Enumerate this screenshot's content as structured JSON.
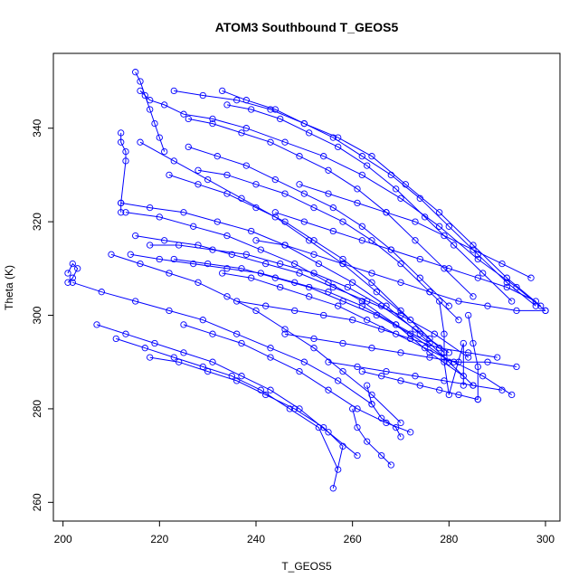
{
  "chart_data": {
    "type": "line",
    "title": "ATOM3 Southbound T_GEOS5",
    "xlabel": "T_GEOS5",
    "ylabel": "Theta (K)",
    "xlim": [
      198,
      303
    ],
    "ylim": [
      256,
      356
    ],
    "xticks": [
      200,
      220,
      240,
      260,
      280,
      300
    ],
    "yticks": [
      260,
      280,
      300,
      320,
      340
    ],
    "series_color": "#0000ff",
    "marker": "open-circle",
    "grid": false,
    "series": [
      {
        "x": [
          216,
          218,
          221,
          225,
          231,
          238,
          246,
          254,
          262,
          270,
          278,
          286,
          294,
          300
        ],
        "y": [
          348,
          346,
          345,
          343,
          342,
          340,
          337,
          334,
          330,
          325,
          319,
          312,
          306,
          301
        ]
      },
      {
        "x": [
          223,
          229,
          236,
          243,
          250,
          257,
          264,
          271,
          278,
          285,
          292,
          299
        ],
        "y": [
          348,
          347,
          346,
          344,
          341,
          338,
          334,
          328,
          322,
          315,
          308,
          302
        ]
      },
      {
        "x": [
          233,
          238,
          244,
          250,
          256,
          262,
          268,
          274,
          280,
          286,
          292,
          298
        ],
        "y": [
          348,
          346,
          344,
          341,
          338,
          334,
          330,
          325,
          319,
          313,
          307,
          302
        ]
      },
      {
        "x": [
          234,
          239,
          245,
          251,
          257,
          263,
          269,
          275,
          281,
          287,
          293
        ],
        "y": [
          345,
          344,
          342,
          339,
          336,
          332,
          327,
          321,
          315,
          309,
          303
        ]
      },
      {
        "x": [
          226,
          231,
          237,
          243,
          249,
          255,
          261,
          267,
          273,
          279,
          285
        ],
        "y": [
          342,
          341,
          339,
          337,
          334,
          331,
          327,
          322,
          316,
          310,
          304
        ]
      },
      {
        "x": [
          215,
          216,
          217,
          218,
          219,
          220,
          221
        ],
        "y": [
          352,
          350,
          347,
          344,
          341,
          338,
          335
        ]
      },
      {
        "x": [
          212,
          212,
          213,
          213,
          212,
          212
        ],
        "y": [
          339,
          337,
          335,
          333,
          324,
          322
        ]
      },
      {
        "x": [
          212,
          218,
          225,
          232,
          239,
          246,
          253,
          260,
          267,
          274,
          280
        ],
        "y": [
          324,
          323,
          322,
          320,
          318,
          315,
          311,
          307,
          302,
          296,
          290
        ]
      },
      {
        "x": [
          213,
          220,
          227,
          234,
          241,
          248,
          255,
          262,
          269,
          276,
          283
        ],
        "y": [
          322,
          321,
          319,
          317,
          314,
          311,
          307,
          303,
          298,
          292,
          287
        ]
      },
      {
        "x": [
          216,
          223,
          230,
          237,
          244,
          251,
          258,
          265,
          272,
          279
        ],
        "y": [
          337,
          333,
          329,
          325,
          321,
          316,
          311,
          305,
          299,
          292
        ]
      },
      {
        "x": [
          222,
          228,
          234,
          240,
          246,
          252,
          258,
          264,
          270,
          276
        ],
        "y": [
          330,
          328,
          326,
          323,
          320,
          316,
          312,
          307,
          301,
          295
        ]
      },
      {
        "x": [
          226,
          232,
          238,
          244,
          250,
          256,
          262,
          268,
          274,
          280
        ],
        "y": [
          336,
          334,
          332,
          329,
          326,
          323,
          319,
          314,
          308,
          302
        ]
      },
      {
        "x": [
          228,
          234,
          240,
          246,
          252,
          258,
          264,
          270,
          276,
          282
        ],
        "y": [
          331,
          330,
          328,
          326,
          323,
          320,
          316,
          311,
          305,
          299
        ]
      },
      {
        "x": [
          215,
          221,
          228,
          235,
          242,
          249,
          256,
          263,
          270,
          277,
          284
        ],
        "y": [
          317,
          316,
          315,
          313,
          311,
          309,
          306,
          303,
          300,
          296,
          291
        ]
      },
      {
        "x": [
          214,
          220,
          227,
          234,
          241,
          248,
          255,
          262,
          269,
          276
        ],
        "y": [
          313,
          312,
          311,
          310,
          309,
          307,
          305,
          302,
          298,
          294
        ]
      },
      {
        "x": [
          218,
          224,
          231,
          238,
          245,
          252,
          259,
          266,
          273,
          280
        ],
        "y": [
          315,
          315,
          314,
          313,
          311,
          309,
          306,
          302,
          297,
          292
        ]
      },
      {
        "x": [
          223,
          230,
          237,
          244,
          251,
          258,
          265,
          272,
          279,
          285
        ],
        "y": [
          312,
          311,
          310,
          308,
          306,
          303,
          300,
          296,
          291,
          285
        ]
      },
      {
        "x": [
          201,
          202,
          203,
          202,
          201
        ],
        "y": [
          309,
          311,
          310,
          308,
          307
        ]
      },
      {
        "x": [
          202,
          208,
          215,
          222,
          229,
          236,
          243,
          250,
          257,
          264
        ],
        "y": [
          307,
          305,
          303,
          301,
          299,
          296,
          293,
          290,
          286,
          281
        ]
      },
      {
        "x": [
          210,
          216,
          222,
          228,
          234,
          240,
          246,
          252,
          258,
          264,
          270
        ],
        "y": [
          313,
          311,
          309,
          307,
          304,
          301,
          297,
          293,
          288,
          283,
          277
        ]
      },
      {
        "x": [
          207,
          213,
          219,
          225,
          231,
          237,
          243,
          249,
          255,
          261
        ],
        "y": [
          298,
          296,
          294,
          292,
          290,
          287,
          284,
          280,
          275,
          270
        ]
      },
      {
        "x": [
          211,
          217,
          223,
          229,
          235,
          241,
          247,
          253,
          257
        ],
        "y": [
          295,
          293,
          291,
          289,
          287,
          284,
          280,
          276,
          267
        ]
      },
      {
        "x": [
          218,
          224,
          230,
          236,
          242,
          248,
          254,
          258,
          256
        ],
        "y": [
          291,
          290,
          288,
          286,
          283,
          280,
          276,
          272,
          263
        ]
      },
      {
        "x": [
          225,
          231,
          237,
          243,
          249,
          255,
          261,
          267,
          272
        ],
        "y": [
          298,
          296,
          294,
          291,
          288,
          284,
          280,
          277,
          275
        ]
      },
      {
        "x": [
          233,
          239,
          245,
          251,
          257,
          263,
          269,
          275,
          281,
          287,
          293
        ],
        "y": [
          309,
          308,
          306,
          304,
          302,
          299,
          296,
          293,
          290,
          287,
          283
        ]
      },
      {
        "x": [
          240,
          246,
          252,
          258,
          264,
          270,
          276,
          282,
          288,
          294,
          300
        ],
        "y": [
          316,
          315,
          313,
          311,
          309,
          307,
          305,
          303,
          302,
          301,
          301
        ]
      },
      {
        "x": [
          244,
          250,
          256,
          262,
          268,
          274,
          280,
          286,
          292,
          298
        ],
        "y": [
          322,
          320,
          318,
          316,
          314,
          312,
          310,
          308,
          306,
          303
        ]
      },
      {
        "x": [
          249,
          255,
          261,
          267,
          273,
          279,
          285,
          291,
          297
        ],
        "y": [
          328,
          326,
          324,
          322,
          320,
          317,
          314,
          311,
          308
        ]
      },
      {
        "x": [
          236,
          242,
          248,
          254,
          260,
          266,
          272,
          278,
          284,
          290
        ],
        "y": [
          303,
          302,
          301,
          300,
          299,
          297,
          295,
          293,
          292,
          291
        ]
      },
      {
        "x": [
          246,
          252,
          258,
          264,
          270,
          276,
          282,
          288,
          294
        ],
        "y": [
          296,
          295,
          294,
          293,
          292,
          291,
          290,
          290,
          289
        ]
      },
      {
        "x": [
          255,
          261,
          267,
          273,
          279,
          285,
          291
        ],
        "y": [
          290,
          289,
          288,
          287,
          286,
          285,
          284
        ]
      },
      {
        "x": [
          262,
          266,
          270,
          274,
          278,
          282,
          286
        ],
        "y": [
          288,
          287,
          286,
          285,
          284,
          283,
          282
        ]
      },
      {
        "x": [
          278,
          279,
          279,
          280,
          283,
          283
        ],
        "y": [
          303,
          296,
          290,
          283,
          294,
          285
        ]
      },
      {
        "x": [
          284,
          285,
          286,
          286
        ],
        "y": [
          300,
          294,
          289,
          282
        ]
      },
      {
        "x": [
          263,
          264,
          266,
          269,
          270
        ],
        "y": [
          285,
          281,
          278,
          276,
          274
        ]
      },
      {
        "x": [
          260,
          261,
          263,
          266,
          268
        ],
        "y": [
          280,
          276,
          273,
          270,
          268
        ]
      }
    ]
  }
}
